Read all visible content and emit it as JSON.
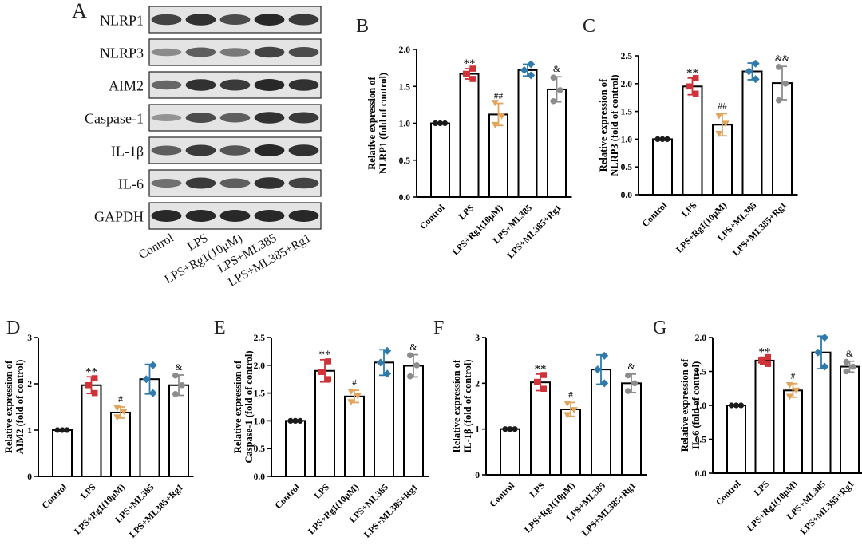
{
  "colors": {
    "control": "#1a1a1a",
    "lps": "#d0323a",
    "rg1": "#e3a35a",
    "ml385": "#2f7aab",
    "ml385_rg1": "#8c8c8c"
  },
  "western_blot": {
    "panel_letter": "A",
    "proteins": [
      "NLRP1",
      "NLRP3",
      "AIM2",
      "Caspase-1",
      "IL-1β",
      "IL-6",
      "GAPDH"
    ],
    "lanes": [
      "Control",
      "LPS",
      "LPS+Rg1(10μM)",
      "LPS+ML385",
      "LPS+ML385+Rg1"
    ],
    "band_intensity": [
      [
        0.75,
        0.85,
        0.7,
        0.9,
        0.8
      ],
      [
        0.35,
        0.6,
        0.45,
        0.75,
        0.7
      ],
      [
        0.55,
        0.85,
        0.8,
        0.9,
        0.85
      ],
      [
        0.3,
        0.7,
        0.6,
        0.85,
        0.8
      ],
      [
        0.6,
        0.8,
        0.65,
        0.9,
        0.85
      ],
      [
        0.5,
        0.8,
        0.6,
        0.85,
        0.75
      ],
      [
        0.9,
        0.9,
        0.9,
        0.9,
        0.9
      ]
    ]
  },
  "chart_data": [
    {
      "panel": "B",
      "type": "bar",
      "ylabel": [
        "Relative expression of",
        "NLRP1 (fold of control)"
      ],
      "categories": [
        "Control",
        "LPS",
        "LPS+Rg1(10μM)",
        "LPS+ML385",
        "LPS+ML385+Rg1"
      ],
      "values": [
        1.0,
        1.67,
        1.12,
        1.72,
        1.46
      ],
      "errors": [
        0.0,
        0.07,
        0.15,
        0.08,
        0.17
      ],
      "points": [
        [
          1,
          1,
          1
        ],
        [
          1.6,
          1.67,
          1.74
        ],
        [
          0.98,
          1.1,
          1.28
        ],
        [
          1.65,
          1.72,
          1.8
        ],
        [
          1.3,
          1.45,
          1.62
        ]
      ],
      "ylim": [
        0,
        2.0
      ],
      "ticks": [
        "0.0",
        "0.5",
        "1.0",
        "1.5",
        "2.0"
      ],
      "annotations": [
        "",
        "**",
        "##",
        "",
        "&"
      ]
    },
    {
      "panel": "C",
      "type": "bar",
      "ylabel": [
        "Relative expression of",
        "NLRP3 (fold of control)"
      ],
      "categories": [
        "Control",
        "LPS",
        "LPS+Rg1(10μM)",
        "LPS+ML385",
        "LPS+ML385+Rg1"
      ],
      "values": [
        1.0,
        1.95,
        1.26,
        2.22,
        2.01
      ],
      "errors": [
        0.0,
        0.15,
        0.2,
        0.15,
        0.3
      ],
      "points": [
        [
          1,
          1,
          1
        ],
        [
          1.82,
          1.95,
          2.1
        ],
        [
          1.1,
          1.28,
          1.42
        ],
        [
          2.08,
          2.22,
          2.36
        ],
        [
          1.7,
          2.0,
          2.3
        ]
      ],
      "ylim": [
        0,
        2.5
      ],
      "ticks": [
        "0.0",
        "0.5",
        "1.0",
        "1.5",
        "2.0",
        "2.5"
      ],
      "annotations": [
        "",
        "**",
        "##",
        "",
        "&&"
      ]
    },
    {
      "panel": "D",
      "type": "bar",
      "ylabel": [
        "Relative expression of",
        "AIM2 (fold of control)"
      ],
      "categories": [
        "Control",
        "LPS",
        "LPS+Rg1(10μM)",
        "LPS+ML385",
        "LPS+ML385+Rg1"
      ],
      "values": [
        1.0,
        1.97,
        1.38,
        2.1,
        1.97
      ],
      "errors": [
        0.0,
        0.18,
        0.12,
        0.32,
        0.22
      ],
      "points": [
        [
          1,
          1,
          1
        ],
        [
          1.8,
          1.97,
          2.12
        ],
        [
          1.28,
          1.4,
          1.48
        ],
        [
          1.8,
          2.1,
          2.4
        ],
        [
          1.78,
          1.97,
          2.18
        ]
      ],
      "ylim": [
        0,
        3
      ],
      "ticks": [
        "0",
        "1",
        "2",
        "3"
      ],
      "annotations": [
        "",
        "**",
        "#",
        "",
        "&"
      ]
    },
    {
      "panel": "E",
      "type": "bar",
      "ylabel": [
        "Relative expression of",
        "Caspase-1 (fold of control)"
      ],
      "categories": [
        "Control",
        "LPS",
        "LPS+Rg1(10μM)",
        "LPS+ML385",
        "LPS+ML385+Rg1"
      ],
      "values": [
        1.0,
        1.9,
        1.44,
        2.05,
        1.99
      ],
      "errors": [
        0.0,
        0.2,
        0.11,
        0.23,
        0.2
      ],
      "points": [
        [
          1,
          1,
          1
        ],
        [
          1.75,
          1.88,
          2.07
        ],
        [
          1.34,
          1.45,
          1.53
        ],
        [
          1.85,
          2.05,
          2.26
        ],
        [
          1.8,
          2.0,
          2.18
        ]
      ],
      "ylim": [
        0,
        2.5
      ],
      "ticks": [
        "0.0",
        "0.5",
        "1.0",
        "1.5",
        "2.0",
        "2.5"
      ],
      "annotations": [
        "",
        "**",
        "#",
        "",
        "&"
      ]
    },
    {
      "panel": "F",
      "type": "bar",
      "ylabel": [
        "Relative expression of",
        "IL-1β (fold of control)"
      ],
      "categories": [
        "Control",
        "LPS",
        "LPS+Rg1(10μM)",
        "LPS+ML385",
        "LPS+ML385+Rg1"
      ],
      "values": [
        1.0,
        2.02,
        1.43,
        2.3,
        2.0
      ],
      "errors": [
        0.0,
        0.18,
        0.15,
        0.32,
        0.2
      ],
      "points": [
        [
          1,
          1,
          1
        ],
        [
          1.88,
          2.03,
          2.18
        ],
        [
          1.31,
          1.42,
          1.56
        ],
        [
          2.0,
          2.3,
          2.6
        ],
        [
          1.83,
          2.0,
          2.17
        ]
      ],
      "ylim": [
        0,
        3
      ],
      "ticks": [
        "0",
        "1",
        "2",
        "3"
      ],
      "annotations": [
        "",
        "**",
        "#",
        "",
        "&"
      ]
    },
    {
      "panel": "G",
      "type": "bar",
      "ylabel": [
        "Relative expression of",
        "IL-6 (fold of control)"
      ],
      "categories": [
        "Control",
        "LPS",
        "LPS+Rg1(10μM)",
        "LPS+ML385",
        "LPS+ML385+Rg1"
      ],
      "values": [
        1.0,
        1.66,
        1.22,
        1.78,
        1.57
      ],
      "errors": [
        0.0,
        0.05,
        0.1,
        0.24,
        0.08
      ],
      "points": [
        [
          1,
          1,
          1
        ],
        [
          1.61,
          1.66,
          1.71
        ],
        [
          1.13,
          1.22,
          1.3
        ],
        [
          1.57,
          1.78,
          2.0
        ],
        [
          1.5,
          1.57,
          1.64
        ]
      ],
      "ylim": [
        0,
        2.0
      ],
      "ticks": [
        "0.0",
        "0.5",
        "1.0",
        "1.5",
        "2.0"
      ],
      "annotations": [
        "",
        "**",
        "#",
        "",
        "&"
      ]
    }
  ]
}
